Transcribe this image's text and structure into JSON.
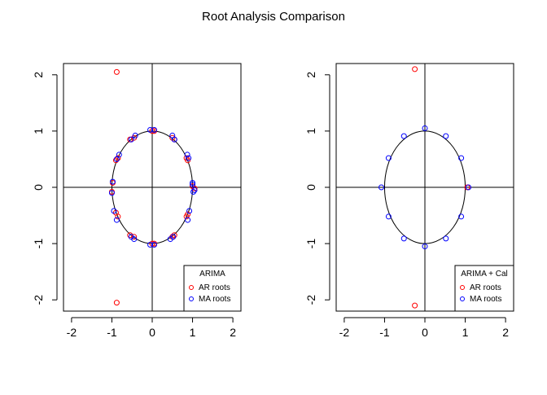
{
  "figure": {
    "title": "Root Analysis Comparison"
  },
  "chart_data": [
    {
      "type": "scatter",
      "title": "",
      "xlabel": "",
      "ylabel": "",
      "xlim": [
        -2.2,
        2.2
      ],
      "ylim": [
        -2.2,
        2.2
      ],
      "x_ticks": [
        "-2",
        "-1",
        "0",
        "1",
        "2"
      ],
      "y_ticks": [
        "-2",
        "-1",
        "0",
        "1",
        "2"
      ],
      "x_tick_values": [
        -2,
        -1,
        0,
        1,
        2
      ],
      "y_tick_values": [
        -2,
        -1,
        0,
        1,
        2
      ],
      "unit_circle": true,
      "reference_lines": {
        "x": 0,
        "y": 0
      },
      "legend": {
        "title": "ARIMA",
        "position": "bottom-right"
      },
      "series": [
        {
          "name": "AR roots",
          "color": "#ff0000",
          "x": [
            -0.88,
            -0.88,
            1.0,
            1.05,
            0.85,
            0.88,
            0.5,
            0.55,
            0.0,
            0.05,
            -0.45,
            -0.55,
            -0.85,
            -0.9,
            -0.98,
            -1.0,
            -0.9,
            -0.85,
            -0.55,
            -0.45,
            0.0,
            0.05,
            0.5,
            0.55,
            0.85,
            0.88
          ],
          "y": [
            2.05,
            -2.05,
            0.02,
            -0.02,
            0.52,
            0.48,
            0.88,
            0.85,
            1.0,
            1.0,
            0.88,
            0.85,
            0.52,
            0.48,
            0.08,
            -0.08,
            -0.45,
            -0.52,
            -0.85,
            -0.88,
            -1.0,
            -1.0,
            -0.88,
            -0.85,
            -0.52,
            -0.48
          ]
        },
        {
          "name": "MA roots",
          "color": "#0000ff",
          "x": [
            1.0,
            1.05,
            0.87,
            0.9,
            0.5,
            0.55,
            -0.05,
            0.05,
            -0.42,
            -0.52,
            -0.82,
            -0.88,
            -0.98,
            -1.0,
            -0.95,
            -0.88,
            -0.52,
            -0.45,
            -0.05,
            0.05,
            0.45,
            0.52,
            0.88,
            0.92,
            1.0,
            1.02
          ],
          "y": [
            0.05,
            -0.05,
            0.58,
            0.52,
            0.92,
            0.85,
            1.02,
            1.02,
            0.92,
            0.85,
            0.58,
            0.5,
            0.1,
            -0.1,
            -0.42,
            -0.58,
            -0.88,
            -0.92,
            -1.02,
            -1.02,
            -0.92,
            -0.88,
            -0.58,
            -0.42,
            0.08,
            -0.08
          ]
        }
      ]
    },
    {
      "type": "scatter",
      "title": "",
      "xlabel": "",
      "ylabel": "",
      "xlim": [
        -2.2,
        2.2
      ],
      "ylim": [
        -2.2,
        2.2
      ],
      "x_ticks": [
        "-2",
        "-1",
        "0",
        "1",
        "2"
      ],
      "y_ticks": [
        "-2",
        "-1",
        "0",
        "1",
        "2"
      ],
      "x_tick_values": [
        -2,
        -1,
        0,
        1,
        2
      ],
      "y_tick_values": [
        -2,
        -1,
        0,
        1,
        2
      ],
      "unit_circle": true,
      "reference_lines": {
        "x": 0,
        "y": 0
      },
      "legend": {
        "title": "ARIMA + Cal",
        "position": "bottom-right"
      },
      "series": [
        {
          "name": "AR roots",
          "color": "#ff0000",
          "x": [
            -0.25,
            -0.25,
            1.05
          ],
          "y": [
            2.1,
            -2.1,
            0.0
          ]
        },
        {
          "name": "MA roots",
          "color": "#0000ff",
          "x": [
            0.0,
            0.52,
            0.9,
            1.08,
            0.9,
            0.52,
            0.0,
            -0.52,
            -0.9,
            -1.08,
            -0.9,
            -0.52
          ],
          "y": [
            1.05,
            0.91,
            0.52,
            0.0,
            -0.52,
            -0.91,
            -1.05,
            -0.91,
            -0.52,
            0.0,
            0.52,
            0.91
          ]
        }
      ]
    }
  ]
}
